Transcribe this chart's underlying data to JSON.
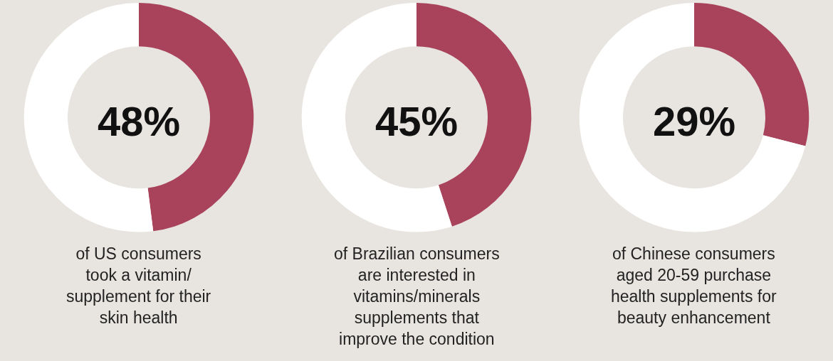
{
  "chart_data": [
    {
      "type": "donut",
      "categories": [
        null,
        null
      ],
      "values": [
        48,
        52
      ],
      "colors": [
        "#a8435b",
        "#ffffff"
      ],
      "legend": false,
      "annotations": [
        "48%",
        "of US consumers\ntook a vitamin/\nsupplement for their\nskin health"
      ]
    },
    {
      "type": "donut",
      "categories": [
        null,
        null
      ],
      "values": [
        45,
        55
      ],
      "colors": [
        "#a8435b",
        "#ffffff"
      ],
      "legend": false,
      "annotations": [
        "45%",
        "of Brazilian consumers\nare interested in\nvitamins/minerals\nsupplements that\nimprove the condition"
      ]
    },
    {
      "type": "donut",
      "categories": [
        null,
        null
      ],
      "values": [
        29,
        71
      ],
      "colors": [
        "#a8435b",
        "#ffffff"
      ],
      "legend": false,
      "annotations": [
        "29%",
        "of Chinese consumers\naged 20-59 purchase\nhealth supplements for\nbeauty enhancement"
      ]
    }
  ]
}
